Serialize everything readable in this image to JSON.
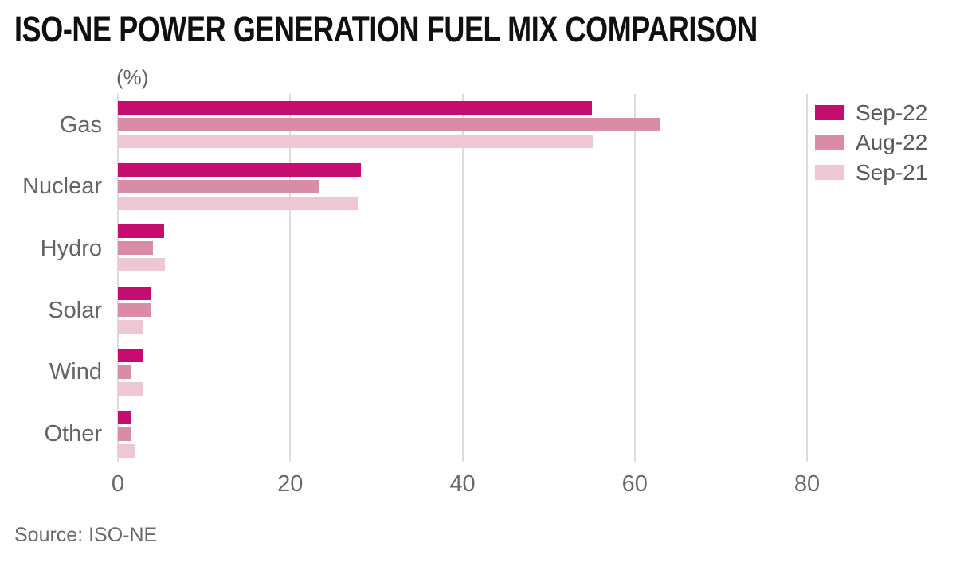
{
  "title": "ISO-NE POWER GENERATION FUEL MIX COMPARISON",
  "axis_unit_label": "(%)",
  "source": "Source: ISO-NE",
  "colors": {
    "sep22": "#c40d6e",
    "aug22": "#d98ca6",
    "sep21": "#edc8d4",
    "gridline": "#dcdcdc",
    "label_text": "#636466",
    "title_text": "#101010"
  },
  "chart_data": {
    "type": "bar",
    "orientation": "horizontal",
    "title": "ISO-NE POWER GENERATION FUEL MIX COMPARISON",
    "xlabel": "(%)",
    "ylabel": "",
    "categories": [
      "Gas",
      "Nuclear",
      "Hydro",
      "Solar",
      "Wind",
      "Other"
    ],
    "series": [
      {
        "name": "Sep-22",
        "color_key": "sep22",
        "values": [
          55.0,
          28.2,
          5.4,
          3.9,
          2.9,
          1.5
        ]
      },
      {
        "name": "Aug-22",
        "color_key": "aug22",
        "values": [
          62.9,
          23.3,
          4.1,
          3.8,
          1.5,
          1.5
        ]
      },
      {
        "name": "Sep-21",
        "color_key": "sep21",
        "values": [
          55.1,
          27.8,
          5.5,
          2.9,
          3.0,
          1.9
        ]
      }
    ],
    "x_ticks": [
      0,
      20,
      40,
      60,
      80
    ],
    "xlim": [
      0,
      95.4
    ],
    "grid": true,
    "legend_position": "top-right",
    "source": "Source: ISO-NE"
  }
}
